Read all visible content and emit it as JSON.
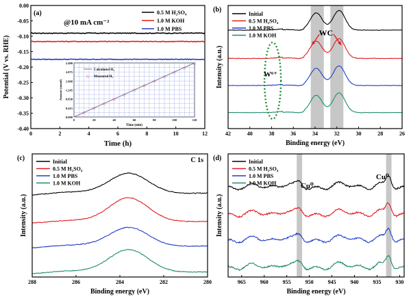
{
  "figure": {
    "colors": {
      "black": "#000000",
      "red": "#e41a1c",
      "blue": "#1f3cc8",
      "teal": "#1f8a70",
      "band": "#b4b4b4",
      "green": "#1e8a2e"
    }
  },
  "chart_data": [
    {
      "panel": "(a)",
      "type": "line",
      "xlabel": "Time (h)",
      "ylabel": "Potential (V vs. RHE)",
      "xlim": [
        0,
        12
      ],
      "ylim": [
        -0.4,
        0.0
      ],
      "xticks": [
        "0",
        "2",
        "4",
        "6",
        "8",
        "10",
        "12"
      ],
      "yticks": [
        "0.00",
        "-0.05",
        "-0.10",
        "-0.15",
        "-0.20",
        "-0.25",
        "-0.30",
        "-0.35",
        "-0.40"
      ],
      "annotation": "@10 mA cm⁻²",
      "series": [
        {
          "name": "0.5 M H₂SO₄",
          "color": "#000000",
          "x": [
            0,
            12
          ],
          "y": [
            -0.09,
            -0.09
          ]
        },
        {
          "name": "1.0 M KOH",
          "color": "#e41a1c",
          "x": [
            0,
            12
          ],
          "y": [
            -0.117,
            -0.117
          ]
        },
        {
          "name": "1.0 M PBS",
          "color": "#1f3cc8",
          "x": [
            0,
            12
          ],
          "y": [
            -0.175,
            -0.175
          ]
        }
      ],
      "inset": {
        "type": "line+scatter",
        "xlabel": "Time (min)",
        "ylabel": "Amount (mmol)",
        "xlim": [
          0,
          120
        ],
        "ylim": [
          0,
          2.49
        ],
        "xticks": [
          "0",
          "20",
          "40",
          "60",
          "80",
          "100",
          "120"
        ],
        "yticks": [
          "0.000",
          "0.415",
          "0.830",
          "1.245",
          "1.660",
          "2.075",
          "2.490"
        ],
        "series": [
          {
            "name": "Calculated H₂",
            "x": [
              0,
              120
            ],
            "y": [
              0,
              2.49
            ]
          },
          {
            "name": "Measured H₂",
            "x": [
              10,
              20,
              30,
              40,
              50,
              60,
              70,
              80,
              90,
              100,
              110,
              120
            ],
            "y": [
              0.2,
              0.41,
              0.62,
              0.82,
              1.03,
              1.24,
              1.45,
              1.65,
              1.86,
              2.06,
              2.27,
              2.48
            ]
          }
        ]
      }
    },
    {
      "panel": "(b)",
      "type": "line",
      "xlabel": "Binding energy (eV)",
      "ylabel": "Intensity (a.u.)",
      "xlim": [
        42,
        26
      ],
      "xticks": [
        "42",
        "40",
        "38",
        "36",
        "34",
        "32",
        "30",
        "28",
        "26"
      ],
      "annotations": [
        "WC",
        "W⁶⁺"
      ],
      "shaded_regions": [
        [
          34.4,
          33.2
        ],
        [
          32.6,
          31.4
        ]
      ],
      "series": [
        {
          "name": "Initial",
          "color": "#000000"
        },
        {
          "name": "0.5 M H₂SO₄",
          "color": "#e41a1c"
        },
        {
          "name": "1.0 M PBS",
          "color": "#1f3cc8"
        },
        {
          "name": "1.0 M KOH",
          "color": "#1f8a70"
        }
      ],
      "peaks": [
        33.9,
        31.8
      ]
    },
    {
      "panel": "(c)",
      "type": "line",
      "xlabel": "Binding energy (eV)",
      "ylabel": "Intensity (a.u.)",
      "xlim": [
        288,
        280
      ],
      "xticks": [
        "288",
        "286",
        "284",
        "282",
        "280"
      ],
      "annotation": "C 1s",
      "series": [
        {
          "name": "Initial",
          "color": "#000000"
        },
        {
          "name": "0.5 M H₂SO₄",
          "color": "#e41a1c"
        },
        {
          "name": "1.0 M PBS",
          "color": "#1f3cc8"
        },
        {
          "name": "1.0 M KOH",
          "color": "#1f8a70"
        }
      ],
      "peaks": [
        283.6
      ]
    },
    {
      "panel": "(d)",
      "type": "line",
      "xlabel": "Binding energy (eV)",
      "ylabel": "Intensity (a.u.)",
      "xlim": [
        968,
        929
      ],
      "xticks": [
        "965",
        "960",
        "955",
        "950",
        "945",
        "940",
        "935",
        "930"
      ],
      "annotations": [
        "Cu⁰",
        "Cu⁰"
      ],
      "shaded_regions": [
        [
          952.8,
          951.6
        ],
        [
          933.0,
          931.8
        ]
      ],
      "series": [
        {
          "name": "Initial",
          "color": "#000000"
        },
        {
          "name": "0.5 M H₂SO₄",
          "color": "#e41a1c"
        },
        {
          "name": "1.0 M PBS",
          "color": "#1f3cc8"
        },
        {
          "name": "1.0 M KOH",
          "color": "#1f8a70"
        }
      ],
      "peaks": [
        952.2,
        932.4
      ]
    }
  ]
}
